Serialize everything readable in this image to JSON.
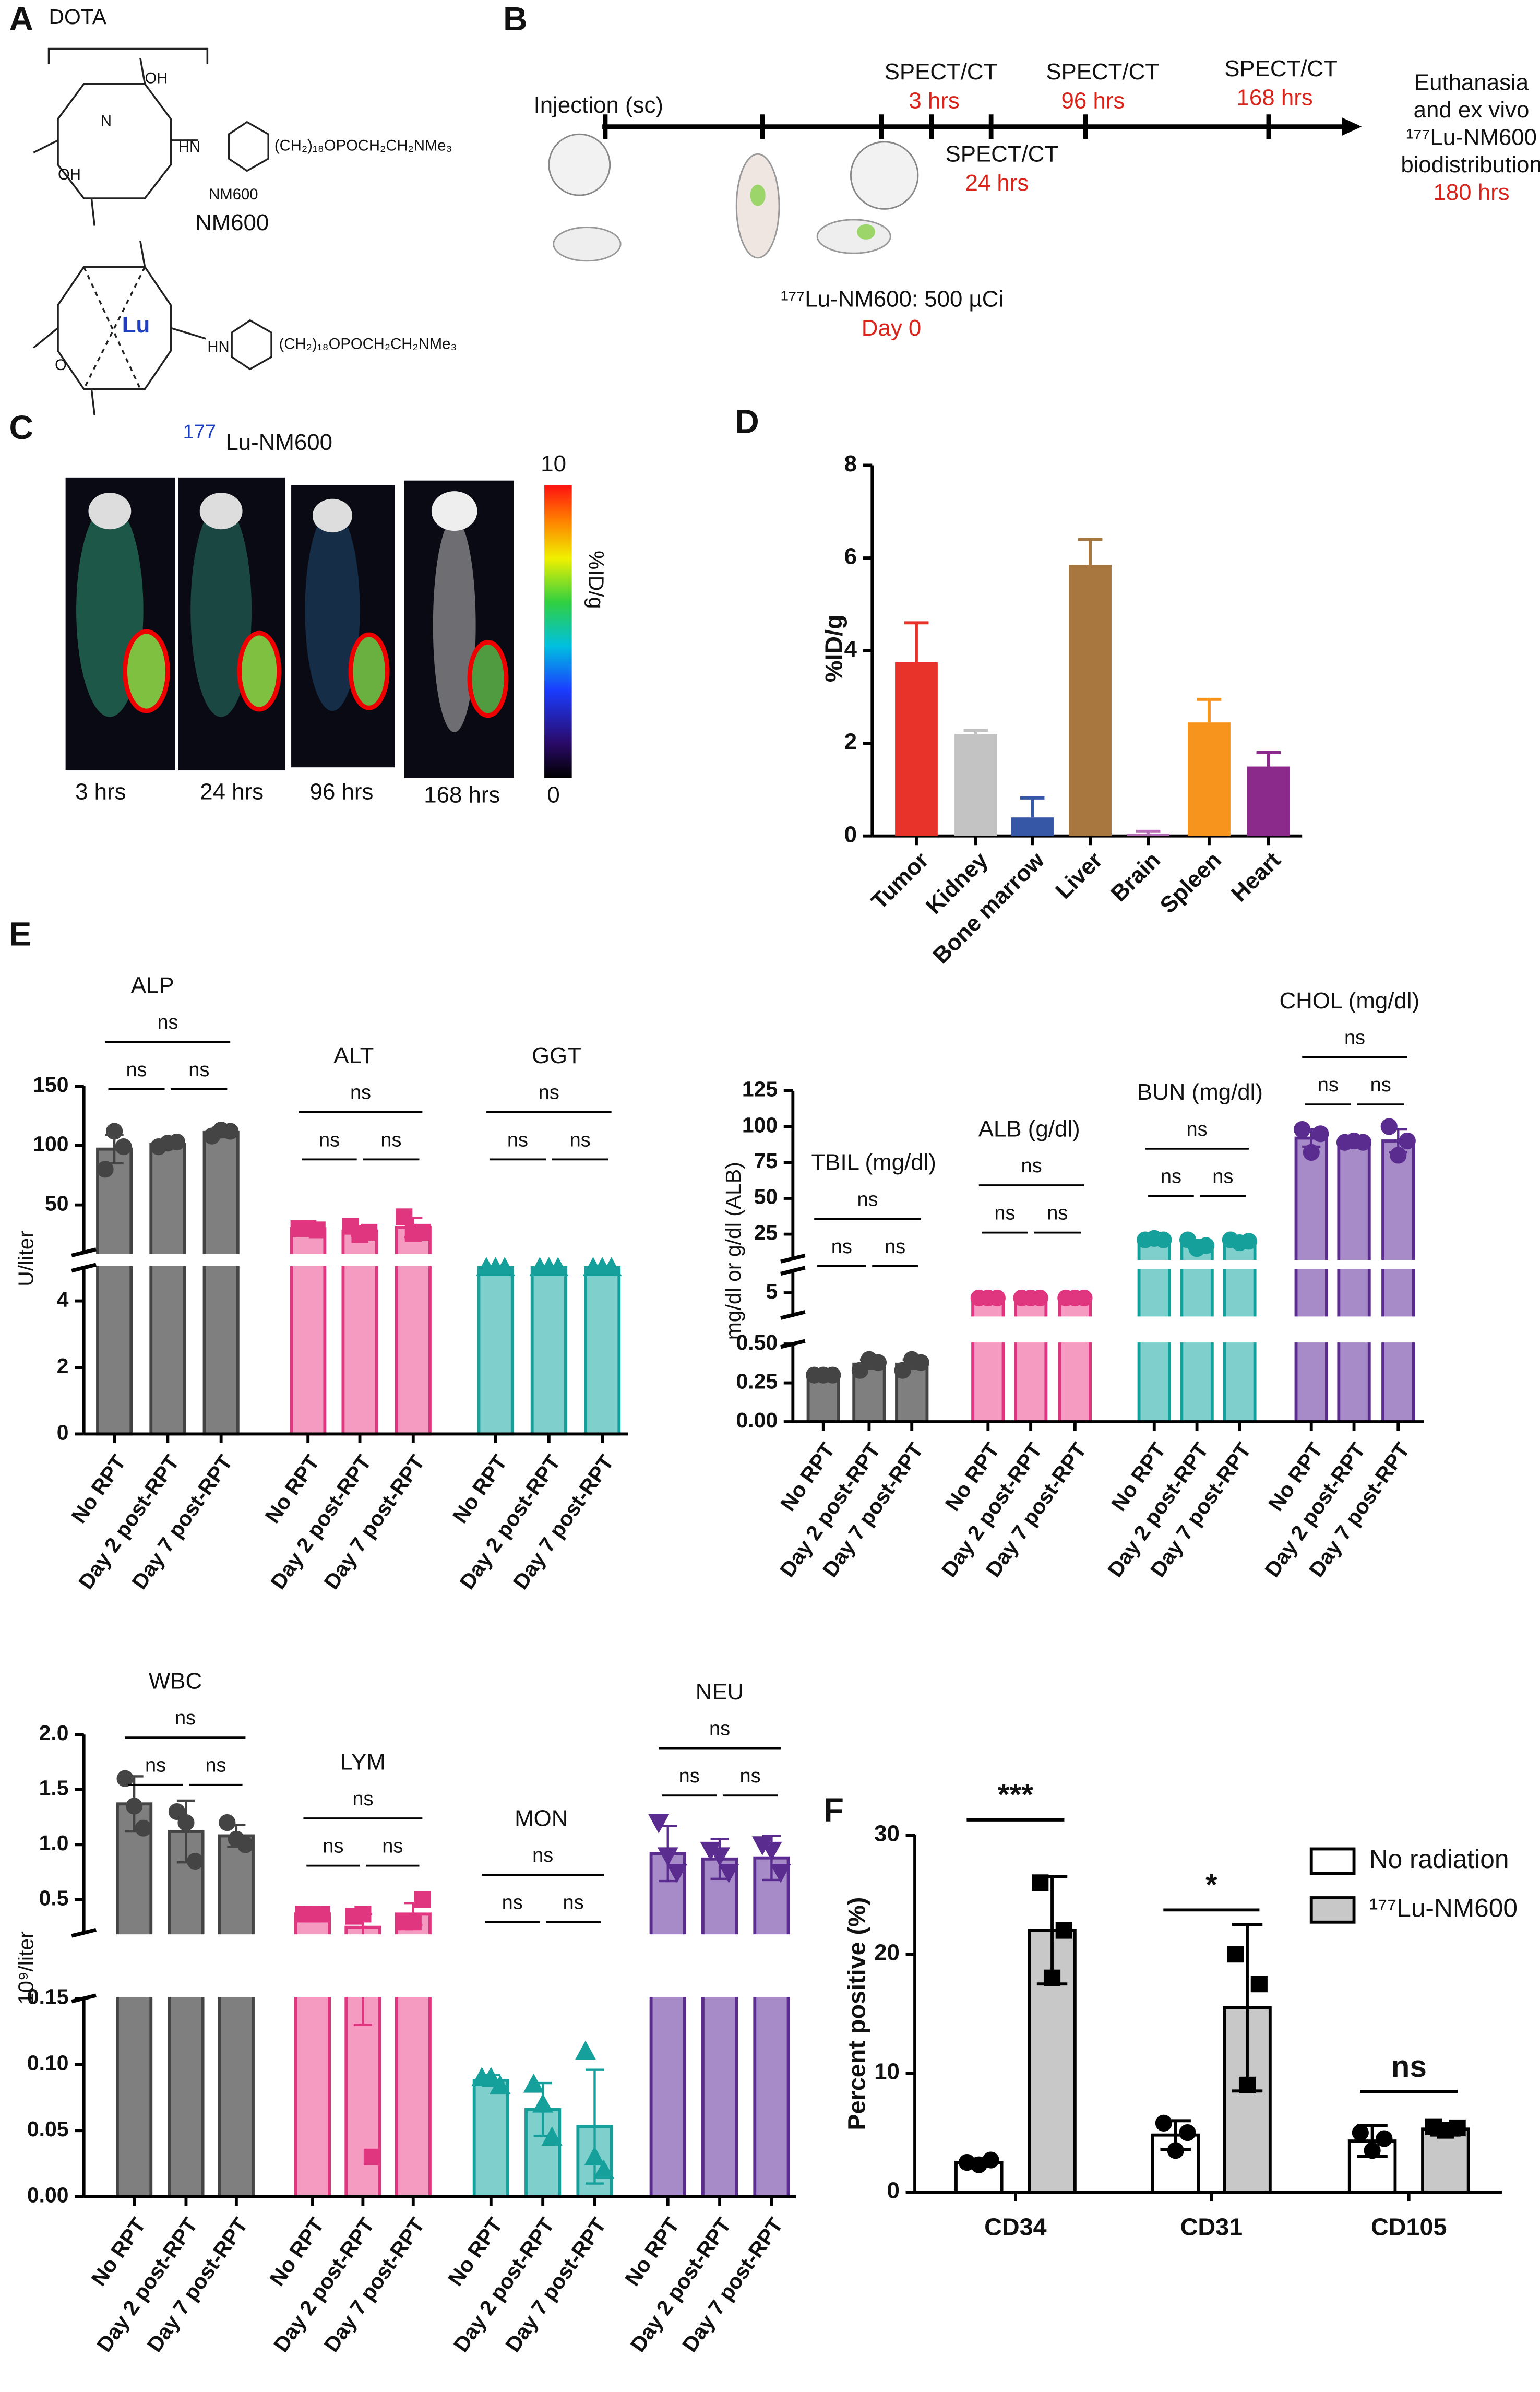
{
  "panel_labels": [
    "A",
    "B",
    "C",
    "D",
    "E",
    "F"
  ],
  "panel_a": {
    "dota": "DOTA",
    "nm600_small": "NM600",
    "nm600": "NM600",
    "chain": "(CH₂)₁₈OPOCH₂CH₂NMe₃",
    "lu": "Lu",
    "isotope": "177",
    "lu_nm600": "Lu-NM600",
    "hn": "HN",
    "oh": "OH",
    "n": "N",
    "o": "O"
  },
  "panel_b": {
    "injection": "Injection (sc)",
    "spect": "SPECT/CT",
    "times": [
      "3 hrs",
      "24 hrs",
      "96 hrs",
      "168 hrs"
    ],
    "euthanasia": [
      "Euthanasia",
      "and  ex vivo",
      "¹⁷⁷Lu-NM600",
      "biodistribution"
    ],
    "end_time": "180 hrs",
    "dose": "¹⁷⁷Lu-NM600: 500 µCi",
    "day": "Day 0"
  },
  "panel_c": {
    "times": [
      "3 hrs",
      "24 hrs",
      "96 hrs",
      "168 hrs"
    ],
    "colorbar": {
      "max": 10,
      "min": 0,
      "label": "%ID/g"
    }
  },
  "chart_data": [
    {
      "type": "bar",
      "ylabel": "%ID/g",
      "categories": [
        "Tumor",
        "Kidney",
        "Bone marrow",
        "Liver",
        "Brain",
        "Spleen",
        "Heart"
      ],
      "values": [
        3.75,
        2.2,
        0.4,
        5.85,
        0.05,
        2.45,
        1.5
      ],
      "errors": [
        0.85,
        0.08,
        0.42,
        0.55,
        0.05,
        0.5,
        0.3
      ],
      "colors": [
        "#e8332a",
        "#c3c3c3",
        "#3657a6",
        "#a8773f",
        "#b56fb5",
        "#f7941d",
        "#8b2a8b"
      ],
      "ylim": [
        0,
        8
      ],
      "yticks": [
        0,
        2,
        4,
        6,
        8
      ]
    },
    {
      "type": "broken_bar",
      "ylabel": "U/liter",
      "categories": [
        "No RPT",
        "Day 2 post-RPT",
        "Day 7 post-RPT"
      ],
      "segments": [
        {
          "ylim": [
            0,
            5
          ],
          "yticks": [
            0,
            2,
            4
          ]
        },
        {
          "ylim": [
            10,
            150
          ],
          "yticks": [
            50,
            100,
            150
          ]
        }
      ],
      "groups": [
        {
          "name": "ALP",
          "color": "#444444",
          "fill": "#7f7f7f",
          "marker": "circle",
          "values": [
            97,
            101,
            111
          ],
          "errors": [
            12,
            2,
            4
          ],
          "points": [
            [
              80,
              112,
              99
            ],
            [
              99,
              102,
              103
            ],
            [
              108,
              113,
              112
            ]
          ],
          "significance": [
            "ns",
            "ns",
            "ns"
          ]
        },
        {
          "name": "ALT",
          "color": "#e0367f",
          "fill": "#f59ac0",
          "marker": "square",
          "values": [
            30,
            28,
            31
          ],
          "errors": [
            2,
            4,
            8
          ],
          "points": [
            [
              30,
              30,
              29
            ],
            [
              32,
              25,
              27
            ],
            [
              40,
              26,
              27
            ]
          ],
          "significance": [
            "ns",
            "ns",
            "ns"
          ]
        },
        {
          "name": "GGT",
          "color": "#16a09b",
          "fill": "#7fcfcc",
          "marker": "triangle",
          "values": [
            5,
            5,
            5
          ],
          "errors": [
            0,
            0,
            0
          ],
          "points": [
            [
              5,
              5,
              5
            ],
            [
              5,
              5,
              5
            ],
            [
              5,
              5,
              5
            ]
          ],
          "significance": [
            "ns",
            "ns",
            "ns"
          ]
        }
      ]
    },
    {
      "type": "broken_bar",
      "ylabel": "mg/dl or g/dl (ALB)",
      "categories": [
        "No RPT",
        "Day 2 post-RPT",
        "Day 7 post-RPT"
      ],
      "segments": [
        {
          "ylim": [
            0,
            0.5
          ],
          "yticks": [
            {
              "value": 0,
              "label": "0.00"
            },
            {
              "value": 0.25,
              "label": "0.25"
            },
            {
              "value": 0.5,
              "label": "0.50"
            }
          ]
        },
        {
          "ylim": [
            2,
            8
          ],
          "yticks": [
            5
          ]
        },
        {
          "ylim": [
            8,
            125
          ],
          "yticks": [
            25,
            50,
            75,
            100,
            125
          ]
        }
      ],
      "groups": [
        {
          "name": "TBIL (mg/dl)",
          "color": "#444444",
          "fill": "#7f7f7f",
          "marker": "circle",
          "values": [
            0.3,
            0.37,
            0.37
          ],
          "errors": [
            0,
            0.03,
            0.03
          ],
          "points": [
            [
              0.3,
              0.3,
              0.3
            ],
            [
              0.33,
              0.4,
              0.38
            ],
            [
              0.33,
              0.4,
              0.38
            ]
          ],
          "significance": [
            "ns",
            "ns",
            "ns"
          ]
        },
        {
          "name": "ALB (g/dl)",
          "color": "#e0367f",
          "fill": "#f59ac0",
          "marker": "circle",
          "values": [
            4.3,
            4.3,
            4.3
          ],
          "errors": [
            0.1,
            0.1,
            0.1
          ],
          "points": [
            [
              4.3,
              4.3,
              4.3
            ],
            [
              4.3,
              4.3,
              4.3
            ],
            [
              4.3,
              4.3,
              4.3
            ]
          ],
          "significance": [
            "ns",
            "ns",
            "ns"
          ]
        },
        {
          "name": "BUN (mg/dl)",
          "color": "#16a09b",
          "fill": "#7fcfcc",
          "marker": "circle",
          "values": [
            21,
            18,
            20
          ],
          "errors": [
            0.5,
            3,
            1
          ],
          "points": [
            [
              21,
              22,
              21
            ],
            [
              21,
              15,
              17
            ],
            [
              21,
              19,
              20
            ]
          ],
          "significance": [
            "ns",
            "ns",
            "ns"
          ]
        },
        {
          "name": "CHOL (mg/dl)",
          "color": "#5b2c8f",
          "fill": "#a78bc9",
          "marker": "circle",
          "values": [
            92,
            89,
            90
          ],
          "errors": [
            6,
            1,
            8
          ],
          "points": [
            [
              98,
              82,
              95
            ],
            [
              89,
              90,
              89
            ],
            [
              100,
              80,
              90
            ]
          ],
          "significance": [
            "ns",
            "ns",
            "ns"
          ]
        }
      ]
    },
    {
      "type": "broken_bar",
      "ylabel": "10⁹/liter",
      "categories": [
        "No RPT",
        "Day 2 post-RPT",
        "Day 7 post-RPT"
      ],
      "segments": [
        {
          "ylim": [
            0,
            0.15
          ],
          "yticks": [
            {
              "value": 0,
              "label": "0.00"
            },
            {
              "value": 0.05,
              "label": "0.05"
            },
            {
              "value": 0.1,
              "label": "0.10"
            },
            {
              "value": 0.15,
              "label": "0.15"
            }
          ]
        },
        {
          "ylim": [
            0.2,
            2
          ],
          "yticks": [
            0.5,
            {
              "value": 1,
              "label": "1.0"
            },
            1.5,
            {
              "value": 2,
              "label": "2.0"
            }
          ]
        }
      ],
      "groups": [
        {
          "name": "WBC",
          "color": "#444444",
          "fill": "#7f7f7f",
          "marker": "circle",
          "values": [
            1.37,
            1.12,
            1.08
          ],
          "errors": [
            0.25,
            0.28,
            0.1
          ],
          "points": [
            [
              1.6,
              1.35,
              1.15
            ],
            [
              1.3,
              1.2,
              0.85
            ],
            [
              1.2,
              1.05,
              1.0
            ]
          ],
          "significance": [
            "ns",
            "ns",
            "ns"
          ]
        },
        {
          "name": "LYM",
          "color": "#e0367f",
          "fill": "#f59ac0",
          "marker": "square",
          "values": [
            0.37,
            0.25,
            0.37
          ],
          "errors": [
            0.02,
            0.12,
            0.1
          ],
          "points": [
            [
              0.37,
              0.37,
              0.37
            ],
            [
              0.35,
              0.37,
              0.03
            ],
            [
              0.3,
              0.3,
              0.5
            ]
          ],
          "significance": [
            "ns",
            "ns",
            "ns"
          ]
        },
        {
          "name": "MON",
          "color": "#16a09b",
          "fill": "#7fcfcc",
          "marker": "triangle",
          "values": [
            0.088,
            0.066,
            0.053
          ],
          "errors": [
            0.004,
            0.02,
            0.043
          ],
          "points": [
            [
              0.09,
              0.09,
              0.084
            ],
            [
              0.085,
              0.07,
              0.045
            ],
            [
              0.11,
              0.03,
              0.02
            ]
          ],
          "significance": [
            "ns",
            "ns",
            "ns"
          ]
        },
        {
          "name": "NEU",
          "color": "#5b2c8f",
          "fill": "#a78bc9",
          "marker": "triangle-down",
          "values": [
            0.92,
            0.87,
            0.88
          ],
          "errors": [
            0.25,
            0.18,
            0.2
          ],
          "points": [
            [
              1.2,
              0.9,
              0.75
            ],
            [
              0.95,
              0.9,
              0.75
            ],
            [
              1.0,
              0.95,
              0.75
            ]
          ],
          "significance": [
            "ns",
            "ns",
            "ns"
          ]
        }
      ]
    },
    {
      "type": "grouped_bar",
      "ylabel": "Percent positive (%)",
      "categories": [
        "CD34",
        "CD31",
        "CD105"
      ],
      "ylim": [
        0,
        30
      ],
      "yticks": [
        0,
        10,
        20,
        30
      ],
      "legend": "upper right",
      "series": [
        {
          "name": "No radiation",
          "color": "#ffffff",
          "marker": "circle",
          "values": [
            2.5,
            4.8,
            4.3
          ],
          "errors": [
            0.3,
            1.2,
            1.3
          ],
          "points": [
            [
              2.5,
              2.3,
              2.7
            ],
            [
              5.8,
              3.5,
              5.0
            ],
            [
              5.0,
              3.5,
              4.5
            ]
          ]
        },
        {
          "name": "¹⁷⁷Lu-NM600",
          "color": "#c8c8c8",
          "marker": "square",
          "values": [
            22,
            15.5,
            5.3
          ],
          "errors": [
            4.5,
            7,
            0.5
          ],
          "points": [
            [
              26,
              18,
              22
            ],
            [
              20,
              9,
              17.5
            ],
            [
              5.5,
              5.2,
              5.4
            ]
          ]
        }
      ],
      "significance": [
        "***",
        "*",
        "ns"
      ]
    }
  ]
}
